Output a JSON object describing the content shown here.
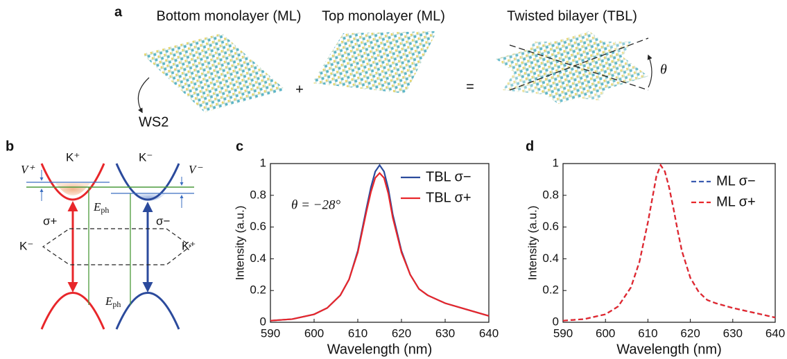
{
  "panel_a": {
    "letter": "a",
    "bottom_label": "Bottom monolayer (ML)",
    "top_label": "Top monolayer (ML)",
    "tbl_label": "Twisted bilayer (TBL)",
    "material": "WS2",
    "plus": "+",
    "equals": "=",
    "angle": "θ"
  },
  "panel_b": {
    "letter": "b",
    "valley_left": "K⁺",
    "valley_right": "K⁻",
    "shift_left": "V⁺",
    "shift_right": "V⁻",
    "sigma_left": "σ+",
    "sigma_right": "σ−",
    "side_left": "K⁻",
    "side_right": "K⁺",
    "phonon": {
      "symbol": "E",
      "subscript": "ph"
    }
  },
  "panel_c_letter": "c",
  "panel_d_letter": "d",
  "chart_data": [
    {
      "type": "line",
      "xlabel": "Wavelength (nm)",
      "ylabel": "Intensity (a.u.)",
      "annotation": "θ = −28°",
      "xlim": [
        590,
        640
      ],
      "xticks": [
        590,
        600,
        610,
        620,
        630,
        640
      ],
      "ylim": [
        0,
        1
      ],
      "yticks": [
        0,
        0.2,
        0.4,
        0.6,
        0.8,
        1
      ],
      "x": [
        590,
        595,
        600,
        603,
        606,
        608,
        610,
        612,
        613,
        614,
        615,
        616,
        617,
        618,
        620,
        622,
        624,
        626,
        630,
        635,
        640
      ],
      "series": [
        {
          "name": "TBL σ−",
          "color": "#2b4a9c",
          "style": "solid",
          "values": [
            0.01,
            0.02,
            0.05,
            0.09,
            0.17,
            0.27,
            0.45,
            0.72,
            0.85,
            0.95,
            0.99,
            0.95,
            0.84,
            0.68,
            0.45,
            0.3,
            0.21,
            0.17,
            0.12,
            0.08,
            0.04
          ]
        },
        {
          "name": "TBL σ+",
          "color": "#e8262a",
          "style": "solid",
          "values": [
            0.01,
            0.02,
            0.05,
            0.09,
            0.17,
            0.27,
            0.44,
            0.7,
            0.82,
            0.91,
            0.94,
            0.91,
            0.81,
            0.66,
            0.44,
            0.3,
            0.21,
            0.17,
            0.12,
            0.08,
            0.04
          ]
        }
      ]
    },
    {
      "type": "line",
      "xlabel": "Wavelength (nm)",
      "ylabel": "Intensity (a.u.)",
      "xlim": [
        590,
        640
      ],
      "xticks": [
        590,
        600,
        610,
        620,
        630,
        640
      ],
      "ylim": [
        0,
        1
      ],
      "yticks": [
        0,
        0.2,
        0.4,
        0.6,
        0.8,
        1
      ],
      "x": [
        590,
        595,
        600,
        603,
        606,
        608,
        610,
        612,
        613,
        614,
        615,
        616,
        617,
        618,
        620,
        622,
        624,
        626,
        630,
        635,
        640
      ],
      "series": [
        {
          "name": "ML σ−",
          "color": "#3a5bb0",
          "style": "dashed",
          "values": [
            0.01,
            0.02,
            0.05,
            0.1,
            0.22,
            0.38,
            0.63,
            0.92,
            0.99,
            0.95,
            0.85,
            0.72,
            0.58,
            0.45,
            0.28,
            0.19,
            0.14,
            0.12,
            0.09,
            0.06,
            0.03
          ]
        },
        {
          "name": "ML σ+",
          "color": "#e8262a",
          "style": "dashed",
          "values": [
            0.01,
            0.02,
            0.05,
            0.1,
            0.22,
            0.38,
            0.63,
            0.92,
            0.99,
            0.95,
            0.85,
            0.72,
            0.58,
            0.45,
            0.28,
            0.19,
            0.14,
            0.12,
            0.09,
            0.06,
            0.03
          ]
        }
      ]
    }
  ]
}
